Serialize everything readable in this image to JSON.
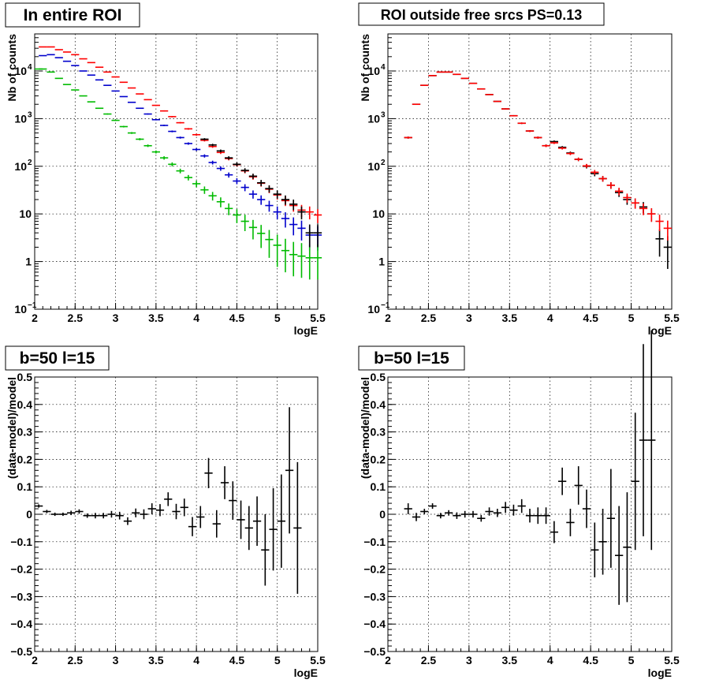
{
  "colors": {
    "black": "#000000",
    "red": "#ff0000",
    "blue": "#0000cc",
    "green": "#00bb00"
  },
  "chart_data": [
    {
      "type": "scatter",
      "title": "In entire ROI",
      "xlabel": "logE",
      "ylabel": "Nb of counts",
      "xlim": [
        2,
        5.5
      ],
      "ylim": [
        0.1,
        60000
      ],
      "log_y": true,
      "grid": true,
      "xticks": [
        "2",
        "2.5",
        "3",
        "3.5",
        "4",
        "4.5",
        "5",
        "5.5"
      ],
      "yticks": [
        {
          "v": 0.1,
          "base": "10",
          "exp": "−1"
        },
        {
          "v": 1,
          "base": "1",
          "exp": ""
        },
        {
          "v": 10,
          "base": "10",
          "exp": ""
        },
        {
          "v": 100,
          "base": "10",
          "exp": "2"
        },
        {
          "v": 1000,
          "base": "10",
          "exp": "3"
        },
        {
          "v": 10000,
          "base": "10",
          "exp": "4"
        }
      ],
      "series": [
        {
          "color": "red",
          "x": [
            2.1,
            2.2,
            2.3,
            2.4,
            2.5,
            2.6,
            2.7,
            2.8,
            2.9,
            3.0,
            3.1,
            3.2,
            3.3,
            3.4,
            3.5,
            3.6,
            3.7,
            3.8,
            3.9,
            4.0,
            4.1,
            4.2,
            4.3,
            4.4,
            4.5,
            4.6,
            4.7,
            4.8,
            4.9,
            5.0,
            5.1,
            5.2,
            5.3,
            5.4,
            5.5
          ],
          "y": [
            32000,
            32000,
            28000,
            25000,
            22000,
            18000,
            15000,
            12000,
            9500,
            7500,
            5800,
            4400,
            3300,
            2500,
            1900,
            1450,
            1100,
            820,
            610,
            460,
            350,
            260,
            195,
            145,
            108,
            80,
            60,
            44,
            33,
            25,
            19,
            15,
            12,
            11,
            9.5
          ]
        },
        {
          "color": "blue",
          "x": [
            2.1,
            2.2,
            2.3,
            2.4,
            2.5,
            2.6,
            2.7,
            2.8,
            2.9,
            3.0,
            3.1,
            3.2,
            3.3,
            3.4,
            3.5,
            3.6,
            3.7,
            3.8,
            3.9,
            4.0,
            4.1,
            4.2,
            4.3,
            4.4,
            4.5,
            4.6,
            4.7,
            4.8,
            4.9,
            5.0,
            5.1,
            5.2,
            5.3,
            5.4,
            5.5
          ],
          "y": [
            21000,
            22000,
            19000,
            16000,
            13000,
            10000,
            8200,
            6500,
            5000,
            3800,
            2900,
            2200,
            1650,
            1250,
            950,
            720,
            540,
            400,
            300,
            225,
            165,
            120,
            90,
            66,
            49,
            36,
            26,
            20,
            15,
            11,
            8,
            6,
            5,
            3.6,
            3.6
          ]
        },
        {
          "color": "green",
          "x": [
            2.05,
            2.1,
            2.2,
            2.3,
            2.4,
            2.5,
            2.6,
            2.7,
            2.8,
            2.9,
            3.0,
            3.1,
            3.2,
            3.3,
            3.4,
            3.5,
            3.6,
            3.7,
            3.8,
            3.9,
            4.0,
            4.1,
            4.2,
            4.3,
            4.4,
            4.5,
            4.6,
            4.7,
            4.8,
            4.9,
            5.0,
            5.1,
            5.2,
            5.3,
            5.4,
            5.5
          ],
          "y": [
            11000,
            11000,
            9500,
            7000,
            5200,
            4000,
            3000,
            2250,
            1650,
            1250,
            920,
            680,
            500,
            370,
            270,
            200,
            150,
            110,
            80,
            58,
            43,
            32,
            24,
            18,
            13,
            9.5,
            7,
            5.2,
            3.9,
            2.9,
            2.2,
            1.7,
            1.4,
            1.3,
            1.2,
            1.2
          ]
        },
        {
          "color": "black",
          "x": [
            4.1,
            4.2,
            4.3,
            4.4,
            4.5,
            4.6,
            4.7,
            4.8,
            4.9,
            5.0,
            5.1,
            5.2,
            5.3,
            5.4,
            5.5
          ],
          "y": [
            370,
            280,
            210,
            150,
            110,
            82,
            62,
            45,
            34,
            26,
            20,
            16,
            11,
            4,
            4
          ]
        }
      ]
    },
    {
      "type": "scatter",
      "title": "ROI outside free srcs PS=0.13",
      "xlabel": "logE",
      "ylabel": "Nb of counts",
      "xlim": [
        2,
        5.5
      ],
      "ylim": [
        0.1,
        60000
      ],
      "log_y": true,
      "grid": true,
      "xticks": [
        "2",
        "2.5",
        "3",
        "3.5",
        "4",
        "4.5",
        "5",
        "5.5"
      ],
      "yticks": [
        {
          "v": 0.1,
          "base": "10",
          "exp": "−1"
        },
        {
          "v": 1,
          "base": "1",
          "exp": ""
        },
        {
          "v": 10,
          "base": "10",
          "exp": ""
        },
        {
          "v": 100,
          "base": "10",
          "exp": "2"
        },
        {
          "v": 1000,
          "base": "10",
          "exp": "3"
        },
        {
          "v": 10000,
          "base": "10",
          "exp": "4"
        }
      ],
      "series": [
        {
          "color": "black",
          "x": [
            2.25,
            2.35,
            2.45,
            2.55,
            2.65,
            2.75,
            2.85,
            2.95,
            3.05,
            3.15,
            3.25,
            3.35,
            3.45,
            3.55,
            3.65,
            3.75,
            3.85,
            3.95,
            4.05,
            4.15,
            4.25,
            4.35,
            4.45,
            4.55,
            4.65,
            4.75,
            4.85,
            4.95,
            5.05,
            5.15,
            5.25,
            5.35,
            5.45
          ],
          "y": [
            400,
            2000,
            5000,
            8000,
            9500,
            9500,
            8500,
            7000,
            5500,
            4200,
            3200,
            2300,
            1600,
            1150,
            800,
            550,
            400,
            270,
            330,
            250,
            190,
            140,
            100,
            70,
            55,
            40,
            28,
            20,
            17,
            14,
            10,
            3,
            2
          ]
        },
        {
          "color": "red",
          "x": [
            2.25,
            2.35,
            2.45,
            2.55,
            2.65,
            2.75,
            2.85,
            2.95,
            3.05,
            3.15,
            3.25,
            3.35,
            3.45,
            3.55,
            3.65,
            3.75,
            3.85,
            3.95,
            4.05,
            4.15,
            4.25,
            4.35,
            4.45,
            4.55,
            4.65,
            4.75,
            4.85,
            4.95,
            5.05,
            5.15,
            5.25,
            5.35,
            5.45
          ],
          "y": [
            400,
            2000,
            5000,
            8000,
            9500,
            9500,
            8500,
            7000,
            5500,
            4200,
            3200,
            2300,
            1600,
            1150,
            800,
            550,
            400,
            270,
            310,
            240,
            185,
            140,
            102,
            75,
            55,
            40,
            30,
            22,
            17,
            13,
            10,
            7,
            5
          ]
        }
      ]
    },
    {
      "type": "scatter",
      "title": "b=50 l=15",
      "xlabel": "logE",
      "ylabel": "(data-model)/model",
      "xlim": [
        2,
        5.5
      ],
      "ylim": [
        -0.5,
        0.5
      ],
      "grid": true,
      "xticks": [
        "2",
        "2.5",
        "3",
        "3.5",
        "4",
        "4.5",
        "5",
        "5.5"
      ],
      "yticks": [
        "−0.5",
        "−0.4",
        "−0.3",
        "−0.2",
        "−0.1",
        "0",
        "0.1",
        "0.2",
        "0.3",
        "0.4",
        "0.5"
      ],
      "series": [
        {
          "color": "black",
          "x": [
            2.05,
            2.15,
            2.25,
            2.35,
            2.45,
            2.55,
            2.65,
            2.75,
            2.85,
            2.95,
            3.05,
            3.15,
            3.25,
            3.35,
            3.45,
            3.55,
            3.65,
            3.75,
            3.85,
            3.95,
            4.05,
            4.15,
            4.25,
            4.35,
            4.45,
            4.55,
            4.65,
            4.75,
            4.85,
            4.95,
            5.05,
            5.15,
            5.25
          ],
          "y": [
            0.03,
            0.01,
            0.0,
            0.0,
            0.005,
            0.01,
            -0.005,
            -0.005,
            -0.005,
            0.0,
            -0.005,
            -0.025,
            0.005,
            0.0,
            0.02,
            0.015,
            0.055,
            0.01,
            0.025,
            -0.045,
            -0.01,
            0.15,
            -0.035,
            0.115,
            0.05,
            -0.02,
            -0.05,
            -0.025,
            -0.13,
            -0.055,
            -0.025,
            0.16,
            -0.05
          ],
          "err": [
            0.006,
            0.006,
            0.006,
            0.006,
            0.008,
            0.008,
            0.008,
            0.01,
            0.01,
            0.012,
            0.014,
            0.014,
            0.016,
            0.018,
            0.02,
            0.022,
            0.025,
            0.028,
            0.032,
            0.035,
            0.04,
            0.055,
            0.05,
            0.06,
            0.07,
            0.07,
            0.08,
            0.09,
            0.13,
            0.15,
            0.17,
            0.23,
            0.24
          ]
        }
      ]
    },
    {
      "type": "scatter",
      "title": "b=50 l=15",
      "xlabel": "logE",
      "ylabel": "(data-model)/model",
      "xlim": [
        2,
        5.5
      ],
      "ylim": [
        -0.5,
        0.5
      ],
      "grid": true,
      "xticks": [
        "2",
        "2.5",
        "3",
        "3.5",
        "4",
        "4.5",
        "5",
        "5.5"
      ],
      "yticks": [
        "−0.5",
        "−0.4",
        "−0.3",
        "−0.2",
        "−0.1",
        "0",
        "0.1",
        "0.2",
        "0.3",
        "0.4",
        "0.5"
      ],
      "series": [
        {
          "color": "black",
          "x": [
            2.25,
            2.35,
            2.45,
            2.55,
            2.65,
            2.75,
            2.85,
            2.95,
            3.05,
            3.15,
            3.25,
            3.35,
            3.45,
            3.55,
            3.65,
            3.75,
            3.85,
            3.95,
            4.05,
            4.15,
            4.25,
            4.35,
            4.45,
            4.55,
            4.65,
            4.75,
            4.85,
            4.95,
            5.05,
            5.15,
            5.25
          ],
          "y": [
            0.02,
            -0.01,
            0.01,
            0.03,
            -0.005,
            0.005,
            -0.005,
            0.0,
            0.0,
            -0.015,
            0.01,
            0.005,
            0.025,
            0.015,
            0.03,
            -0.005,
            -0.005,
            -0.005,
            -0.065,
            0.12,
            -0.03,
            0.105,
            0.02,
            -0.13,
            -0.1,
            -0.015,
            -0.15,
            -0.12,
            0.12,
            0.27,
            0.27
          ],
          "err": [
            0.02,
            0.015,
            0.01,
            0.01,
            0.01,
            0.01,
            0.012,
            0.012,
            0.012,
            0.012,
            0.015,
            0.015,
            0.02,
            0.02,
            0.025,
            0.025,
            0.03,
            0.03,
            0.04,
            0.05,
            0.05,
            0.07,
            0.07,
            0.1,
            0.12,
            0.18,
            0.18,
            0.2,
            0.25,
            0.35,
            0.4
          ]
        }
      ]
    }
  ]
}
